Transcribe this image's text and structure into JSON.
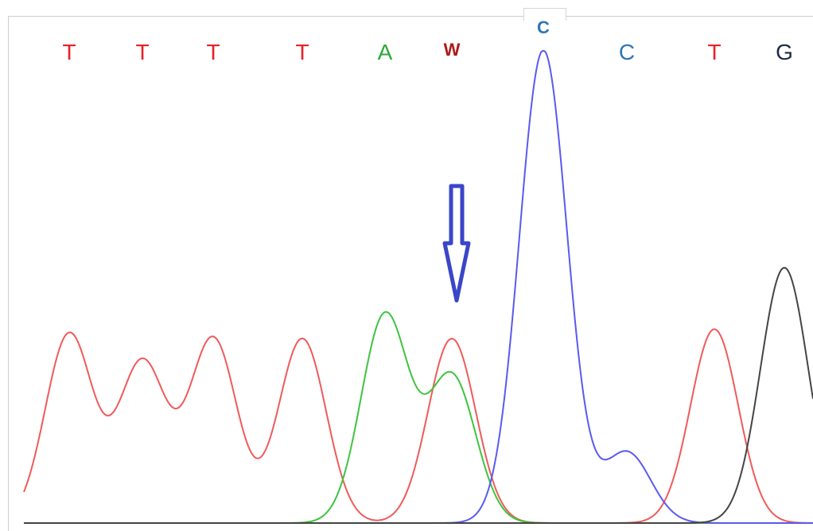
{
  "chart_data": {
    "type": "line",
    "base_calls": [
      {
        "label": "T",
        "color": "#e8202a",
        "bold": false
      },
      {
        "label": "T",
        "color": "#e8202a",
        "bold": false
      },
      {
        "label": "T",
        "color": "#e8202a",
        "bold": false
      },
      {
        "label": "T",
        "color": "#e8202a",
        "bold": false
      },
      {
        "label": "A",
        "color": "#2ea836",
        "bold": false
      },
      {
        "label": "W",
        "color": "#b01818",
        "bold": true
      },
      {
        "label": "C",
        "color": "#2f75b5",
        "bold": true
      },
      {
        "label": "C",
        "color": "#2f75b5",
        "bold": false
      },
      {
        "label": "T",
        "color": "#e8202a",
        "bold": false
      },
      {
        "label": "G",
        "color": "#1c2a44",
        "bold": false
      }
    ],
    "series": [
      {
        "channel": "T",
        "color": "#f05a5a",
        "peaks": [
          {
            "position": 1,
            "height": 0.4
          },
          {
            "position": 2,
            "height": 0.34
          },
          {
            "position": 3,
            "height": 0.39
          },
          {
            "position": 4,
            "height": 0.39
          },
          {
            "position": 6,
            "height": 0.39
          },
          {
            "position": 9,
            "height": 0.41
          }
        ]
      },
      {
        "channel": "A",
        "color": "#3ec43e",
        "peaks": [
          {
            "position": 5,
            "height": 0.44
          },
          {
            "position": 6,
            "height": 0.31
          }
        ]
      },
      {
        "channel": "C",
        "color": "#5a5af0",
        "peaks": [
          {
            "position": 7,
            "height": 1.0
          },
          {
            "position": 8,
            "height": 0.15
          }
        ]
      },
      {
        "channel": "G",
        "color": "#444444",
        "peaks": [
          {
            "position": 10,
            "height": 0.54
          }
        ]
      }
    ],
    "annotation": {
      "type": "arrow",
      "position": 6,
      "color": "#3a46c8"
    }
  }
}
